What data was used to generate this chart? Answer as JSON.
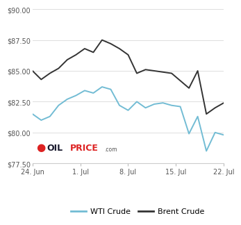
{
  "x_labels": [
    "24. Jun",
    "1. Jul",
    "8. Jul",
    "15. Jul",
    "22. Jul"
  ],
  "x_positions": [
    0,
    7,
    14,
    21,
    28
  ],
  "wti": [
    81.5,
    81.0,
    81.3,
    82.2,
    82.7,
    83.0,
    83.4,
    83.2,
    83.7,
    83.5,
    82.2,
    81.8,
    82.5,
    82.0,
    82.3,
    82.4,
    82.2,
    82.1,
    79.9,
    81.3,
    78.5,
    80.0,
    79.8
  ],
  "brent": [
    85.0,
    84.3,
    84.8,
    85.2,
    85.9,
    86.3,
    86.8,
    86.5,
    87.5,
    87.2,
    86.8,
    86.3,
    84.8,
    85.1,
    85.0,
    84.9,
    84.8,
    84.2,
    83.6,
    85.0,
    81.5,
    82.0,
    82.4
  ],
  "wti_color": "#72bcd4",
  "brent_color": "#333333",
  "ylim": [
    77.5,
    90.0
  ],
  "yticks": [
    77.5,
    80.0,
    82.5,
    85.0,
    87.5,
    90.0
  ],
  "background_color": "#ffffff",
  "grid_color": "#dddddd",
  "legend_wti": "WTI Crude",
  "legend_brent": "Brent Crude"
}
